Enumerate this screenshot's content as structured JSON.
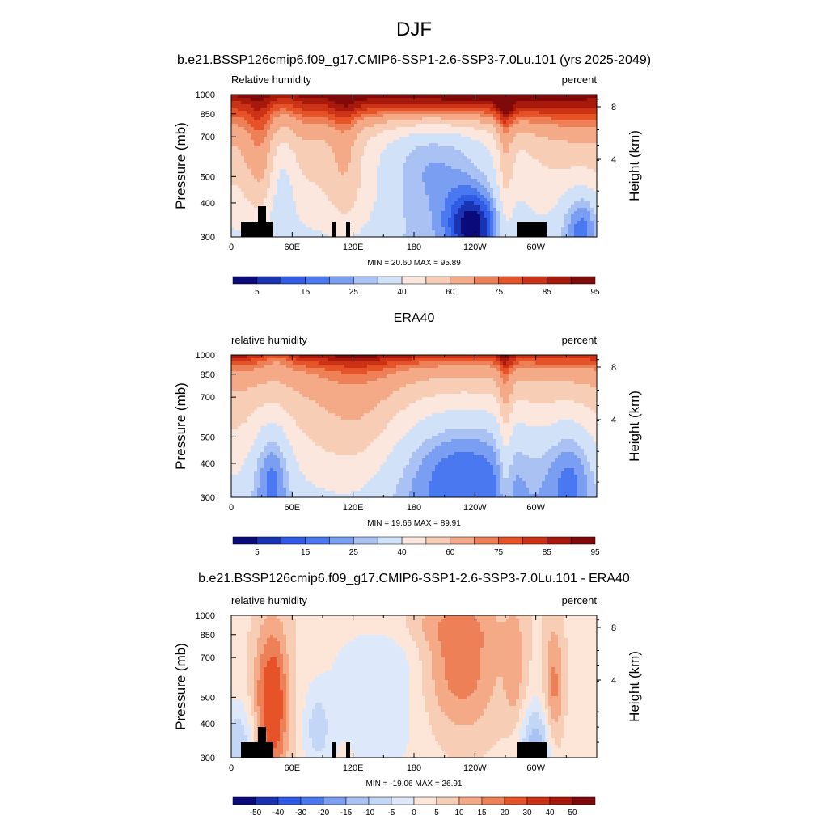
{
  "figure": {
    "title": "DJF",
    "case_title": "b.e21.BSSP126cmip6.f09_g17.CMIP6-SSP1-2.6-SSP3-7.0Lu.101 (yrs 2025-2049)"
  },
  "chart_data": [
    {
      "type": "heatmap",
      "panel_title": "",
      "left_label": "Relative humidity",
      "right_label": "percent",
      "xlabel": "",
      "ylabel": "Pressure (mb)",
      "y2label": "Height (km)",
      "x_ticks": [
        "0",
        "60E",
        "120E",
        "180",
        "120W",
        "60W"
      ],
      "x_tick_lon": [
        0,
        60,
        120,
        180,
        240,
        300
      ],
      "x_range": [
        0,
        360
      ],
      "y_ticks": [
        "300",
        "400",
        "500",
        "700",
        "850",
        "1000"
      ],
      "y_tick_values": [
        300,
        400,
        500,
        700,
        850,
        1000
      ],
      "y_range": [
        1000,
        300
      ],
      "y_scale": "log",
      "y2_ticks": [
        "8",
        "4"
      ],
      "y2_tick_values": [
        8,
        4
      ],
      "stats": "MIN =  20.60  MAX =  95.89",
      "min": 20.6,
      "max": 95.89,
      "colorbar_labels": [
        "5",
        "15",
        "25",
        "40",
        "60",
        "75",
        "85",
        "95"
      ],
      "colorbar_colors": [
        "#0a0a7a",
        "#1a33b3",
        "#2f5be6",
        "#4a78f0",
        "#7a9ef2",
        "#a9c1f3",
        "#d1e2f8",
        "#fbe7dd",
        "#f8cdb6",
        "#f4a987",
        "#ee8058",
        "#e65329",
        "#cc3316",
        "#a8190c",
        "#800a0a"
      ],
      "terrain": true,
      "field": "model"
    },
    {
      "type": "heatmap",
      "panel_title": "ERA40",
      "left_label": "relative humidity",
      "right_label": "percent",
      "xlabel": "",
      "ylabel": "Pressure (mb)",
      "y2label": "Height (km)",
      "x_ticks": [
        "0",
        "60E",
        "120E",
        "180",
        "120W",
        "60W"
      ],
      "x_tick_lon": [
        0,
        60,
        120,
        180,
        240,
        300
      ],
      "x_range": [
        0,
        360
      ],
      "y_ticks": [
        "300",
        "400",
        "500",
        "700",
        "850",
        "1000"
      ],
      "y_tick_values": [
        300,
        400,
        500,
        700,
        850,
        1000
      ],
      "y_range": [
        1000,
        300
      ],
      "y_scale": "log",
      "y2_ticks": [
        "8",
        "4"
      ],
      "y2_tick_values": [
        8,
        4
      ],
      "stats": "MIN =  19.66  MAX =  89.91",
      "min": 19.66,
      "max": 89.91,
      "colorbar_labels": [
        "5",
        "15",
        "25",
        "40",
        "60",
        "75",
        "85",
        "95"
      ],
      "colorbar_colors": [
        "#0a0a7a",
        "#1a33b3",
        "#2f5be6",
        "#4a78f0",
        "#7a9ef2",
        "#a9c1f3",
        "#d1e2f8",
        "#fbe7dd",
        "#f8cdb6",
        "#f4a987",
        "#ee8058",
        "#e65329",
        "#cc3316",
        "#a8190c",
        "#800a0a"
      ],
      "terrain": false,
      "field": "obs"
    },
    {
      "type": "heatmap",
      "panel_title": "b.e21.BSSP126cmip6.f09_g17.CMIP6-SSP1-2.6-SSP3-7.0Lu.101 - ERA40",
      "left_label": "relative humidity",
      "right_label": "percent",
      "xlabel": "",
      "ylabel": "Pressure (mb)",
      "y2label": "Height (km)",
      "x_ticks": [
        "0",
        "60E",
        "120E",
        "180",
        "120W",
        "60W"
      ],
      "x_tick_lon": [
        0,
        60,
        120,
        180,
        240,
        300
      ],
      "x_range": [
        0,
        360
      ],
      "y_ticks": [
        "300",
        "400",
        "500",
        "700",
        "850",
        "1000"
      ],
      "y_tick_values": [
        300,
        400,
        500,
        700,
        850,
        1000
      ],
      "y_range": [
        1000,
        300
      ],
      "y_scale": "log",
      "y2_ticks": [
        "8",
        "4"
      ],
      "y2_tick_values": [
        8,
        4
      ],
      "stats": "MIN = -19.06  MAX =  26.91",
      "min": -19.06,
      "max": 26.91,
      "colorbar_labels": [
        "-50",
        "-40",
        "-30",
        "-20",
        "-15",
        "-10",
        "-5",
        "0",
        "5",
        "10",
        "15",
        "20",
        "30",
        "40",
        "50"
      ],
      "colorbar_colors": [
        "#0a0a7a",
        "#1a33b3",
        "#2f5be6",
        "#4a78f0",
        "#7a9ef2",
        "#a9c1f3",
        "#c3d6f6",
        "#dde9fa",
        "#fde6d8",
        "#f8cdb6",
        "#f4a987",
        "#ee8058",
        "#e65329",
        "#cc3316",
        "#a8190c",
        "#800a0a"
      ],
      "terrain": true,
      "field": "diff"
    }
  ]
}
